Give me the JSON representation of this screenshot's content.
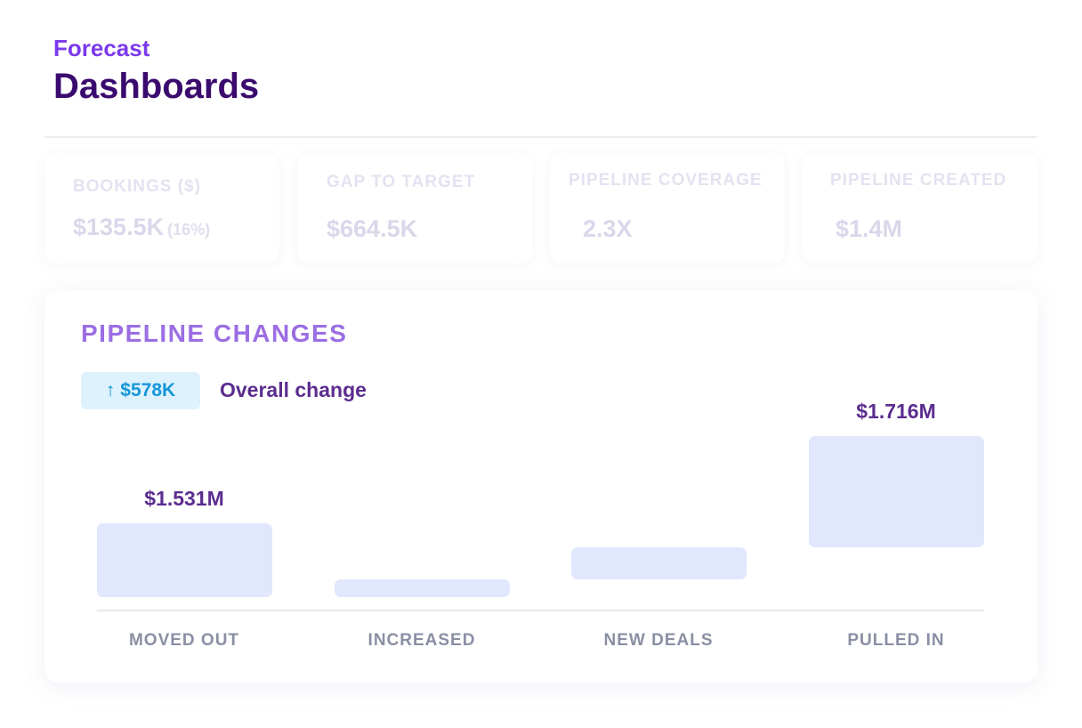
{
  "header": {
    "eyebrow": "Forecast",
    "title": "Dashboards"
  },
  "kpis": [
    {
      "label": "BOOKINGS ($)",
      "value": "$135.5K",
      "sub": "(16%)"
    },
    {
      "label": "GAP TO TARGET",
      "value": "$664.5K"
    },
    {
      "label": "PIPELINE COVERAGE",
      "value": "2.3X"
    },
    {
      "label": "PIPELINE CREATED",
      "value": "$1.4M"
    }
  ],
  "pipeline": {
    "title": "PIPELINE CHANGES",
    "badge": {
      "arrow": "↑",
      "value": "$578K"
    },
    "overall_label": "Overall change"
  },
  "chart_data": {
    "type": "bar",
    "categories": [
      "MOVED OUT",
      "INCREASED",
      "NEW DEALS",
      "PULLED IN"
    ],
    "data_labels": [
      "$1.531M",
      "",
      "",
      "$1.716M"
    ],
    "values_millions": [
      1.531,
      null,
      null,
      1.716
    ],
    "xlabel": "",
    "ylabel": "",
    "grid": false,
    "colors": {
      "bar": "#e1e7fd",
      "label": "#5b2d8f",
      "category": "#8a8fa3"
    }
  },
  "colors": {
    "accent": "#7c3aed",
    "title": "#3b0a6e",
    "badge_bg": "#ddf2fd",
    "badge_text": "#1696d8"
  }
}
